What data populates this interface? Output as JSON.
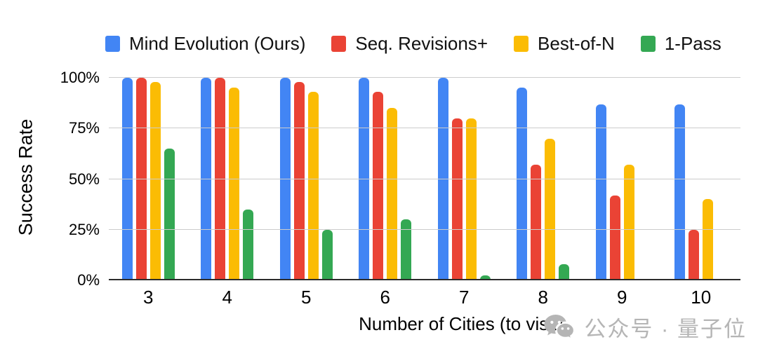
{
  "chart_data": {
    "type": "bar",
    "xlabel": "Number of Cities (to visit)",
    "ylabel": "Success Rate",
    "categories": [
      "3",
      "4",
      "5",
      "6",
      "7",
      "8",
      "9",
      "10"
    ],
    "series": [
      {
        "name": "Mind Evolution (Ours)",
        "color": "#4285F4",
        "values": [
          100,
          100,
          100,
          100,
          100,
          95,
          87,
          87
        ]
      },
      {
        "name": "Seq. Revisions+",
        "color": "#EA4335",
        "values": [
          100,
          100,
          98,
          93,
          80,
          57,
          42,
          25
        ]
      },
      {
        "name": "Best-of-N",
        "color": "#FBBC04",
        "values": [
          98,
          95,
          93,
          85,
          80,
          70,
          57,
          40
        ]
      },
      {
        "name": "1-Pass",
        "color": "#34A853",
        "values": [
          65,
          35,
          25,
          30,
          2.5,
          8,
          0,
          0
        ]
      }
    ],
    "ylim": [
      0,
      100
    ],
    "yticks": [
      0,
      25,
      50,
      75,
      100
    ],
    "ytick_labels": [
      "0%",
      "25%",
      "50%",
      "75%",
      "100%"
    ],
    "grid": true,
    "legend_position": "top",
    "colors": {
      "gridline": "#cccccc",
      "axis_line": "#2b2b2b",
      "text": "#000000",
      "watermark": "#b5b5b5"
    }
  },
  "watermark": {
    "icon": "wechat-icon",
    "text": "公众号 · 量子位"
  }
}
